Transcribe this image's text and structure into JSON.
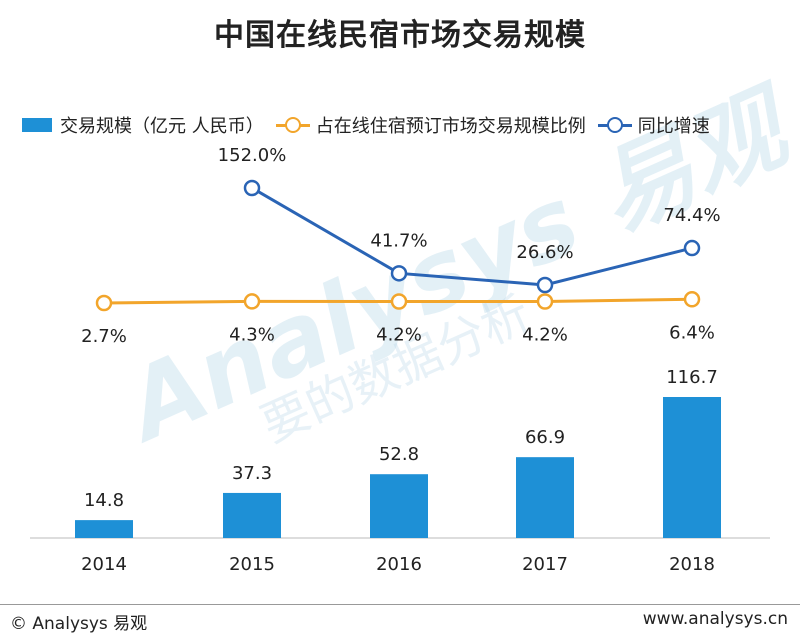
{
  "title": "中国在线民宿市场交易规模",
  "watermark": "Analysys 易观",
  "watermark_cn": "要的数据分析",
  "footer": {
    "left": "© Analysys 易观",
    "right": "www.analysys.cn"
  },
  "colors": {
    "bar": "#1e90d6",
    "share_line": "#f2a52b",
    "growth_line": "#2a64b5"
  },
  "chart_data": {
    "type": "bar",
    "categories": [
      "2014",
      "2015",
      "2016",
      "2017",
      "2018"
    ],
    "series": [
      {
        "name": "交易规模（亿元 人民币）",
        "kind": "bar",
        "values": [
          14.8,
          37.3,
          52.8,
          66.9,
          116.7
        ],
        "labels": [
          "14.8",
          "37.3",
          "52.8",
          "66.9",
          "116.7"
        ]
      },
      {
        "name": "占在线住宿预订市场交易规模比例",
        "kind": "line",
        "values": [
          2.7,
          4.3,
          4.2,
          4.2,
          6.4
        ],
        "labels": [
          "2.7%",
          "4.3%",
          "4.2%",
          "4.2%",
          "6.4%"
        ]
      },
      {
        "name": "同比增速",
        "kind": "line",
        "values": [
          null,
          152.0,
          41.7,
          26.6,
          74.4
        ],
        "labels": [
          "",
          "152.0%",
          "41.7%",
          "26.6%",
          "74.4%"
        ]
      }
    ],
    "ylim": [
      0,
      116.7
    ],
    "grid": false,
    "legend": "top"
  }
}
